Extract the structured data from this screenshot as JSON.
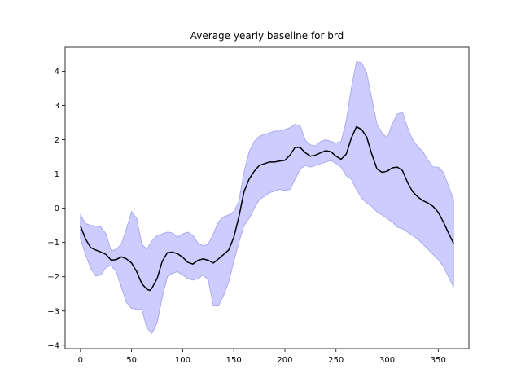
{
  "chart_data": {
    "type": "line",
    "title": "Average yearly baseline for brd",
    "xlabel": "",
    "ylabel": "",
    "xlim": [
      -15,
      380
    ],
    "ylim": [
      -4.1,
      4.7
    ],
    "xticks": [
      0,
      50,
      100,
      150,
      200,
      250,
      300,
      350
    ],
    "yticks": [
      -4,
      -3,
      -2,
      -1,
      0,
      1,
      2,
      3,
      4
    ],
    "grid": false,
    "legend": "none",
    "colors": {
      "line": "#000000",
      "band_fill": "#ccccff",
      "band_edge": "#aaaaf0"
    },
    "series": [
      {
        "role": "mean",
        "x": [
          0,
          5,
          10,
          15,
          20,
          25,
          30,
          35,
          40,
          45,
          50,
          55,
          60,
          65,
          68,
          70,
          75,
          80,
          85,
          90,
          95,
          100,
          105,
          110,
          115,
          120,
          125,
          130,
          135,
          140,
          145,
          150,
          155,
          160,
          165,
          170,
          175,
          180,
          185,
          190,
          195,
          200,
          205,
          210,
          215,
          220,
          225,
          230,
          235,
          240,
          245,
          250,
          255,
          260,
          265,
          270,
          275,
          280,
          285,
          290,
          295,
          300,
          305,
          310,
          315,
          320,
          325,
          330,
          335,
          340,
          345,
          350,
          355,
          360,
          365
        ],
        "y": [
          -0.52,
          -0.9,
          -1.15,
          -1.22,
          -1.28,
          -1.35,
          -1.52,
          -1.5,
          -1.42,
          -1.48,
          -1.6,
          -1.85,
          -2.2,
          -2.37,
          -2.4,
          -2.33,
          -2.05,
          -1.55,
          -1.3,
          -1.28,
          -1.33,
          -1.43,
          -1.58,
          -1.63,
          -1.52,
          -1.48,
          -1.52,
          -1.6,
          -1.48,
          -1.35,
          -1.22,
          -0.85,
          -0.25,
          0.48,
          0.85,
          1.08,
          1.25,
          1.3,
          1.35,
          1.35,
          1.38,
          1.4,
          1.55,
          1.78,
          1.77,
          1.62,
          1.52,
          1.55,
          1.62,
          1.68,
          1.65,
          1.52,
          1.43,
          1.58,
          2.05,
          2.38,
          2.3,
          2.08,
          1.58,
          1.15,
          1.05,
          1.08,
          1.18,
          1.2,
          1.1,
          0.75,
          0.48,
          0.33,
          0.22,
          0.15,
          0.05,
          -0.12,
          -0.4,
          -0.72,
          -1.03
        ]
      },
      {
        "role": "upper",
        "x": [
          0,
          5,
          10,
          15,
          20,
          25,
          30,
          35,
          40,
          45,
          50,
          55,
          60,
          65,
          70,
          75,
          80,
          85,
          90,
          95,
          100,
          105,
          110,
          115,
          120,
          125,
          130,
          135,
          140,
          145,
          150,
          155,
          160,
          165,
          170,
          175,
          180,
          185,
          190,
          195,
          200,
          205,
          210,
          215,
          220,
          225,
          230,
          235,
          240,
          245,
          250,
          255,
          260,
          265,
          270,
          275,
          280,
          285,
          290,
          295,
          300,
          305,
          310,
          315,
          320,
          325,
          330,
          335,
          340,
          345,
          350,
          355,
          360,
          365
        ],
        "y": [
          -0.2,
          -0.45,
          -0.5,
          -0.52,
          -0.55,
          -0.75,
          -1.25,
          -1.2,
          -1.05,
          -0.6,
          -0.1,
          -0.3,
          -1.05,
          -1.2,
          -0.95,
          -0.8,
          -0.75,
          -0.7,
          -0.72,
          -0.85,
          -0.75,
          -0.7,
          -0.8,
          -1.02,
          -1.1,
          -1.05,
          -0.75,
          -0.4,
          -0.25,
          -0.2,
          -0.1,
          0.2,
          1.05,
          1.65,
          1.95,
          2.1,
          2.15,
          2.2,
          2.25,
          2.25,
          2.3,
          2.35,
          2.45,
          2.4,
          1.98,
          1.85,
          1.82,
          1.95,
          2.0,
          1.95,
          1.9,
          1.95,
          2.55,
          3.5,
          4.28,
          4.25,
          3.95,
          3.2,
          2.45,
          2.2,
          2.05,
          2.45,
          2.75,
          2.8,
          2.35,
          2.0,
          1.8,
          1.65,
          1.4,
          1.2,
          1.2,
          1.05,
          0.65,
          0.25
        ]
      },
      {
        "role": "lower",
        "x": [
          0,
          5,
          10,
          15,
          20,
          25,
          30,
          35,
          40,
          45,
          50,
          55,
          60,
          65,
          70,
          75,
          80,
          85,
          90,
          95,
          100,
          105,
          110,
          115,
          120,
          125,
          130,
          135,
          140,
          145,
          150,
          155,
          160,
          165,
          170,
          175,
          180,
          185,
          190,
          195,
          200,
          205,
          210,
          215,
          220,
          225,
          230,
          235,
          240,
          245,
          250,
          255,
          260,
          265,
          270,
          275,
          280,
          285,
          290,
          295,
          300,
          305,
          310,
          315,
          320,
          325,
          330,
          335,
          340,
          345,
          350,
          355,
          360,
          365
        ],
        "y": [
          -0.9,
          -1.35,
          -1.75,
          -1.98,
          -1.95,
          -1.72,
          -1.68,
          -1.85,
          -2.3,
          -2.75,
          -2.92,
          -2.95,
          -2.95,
          -3.5,
          -3.65,
          -3.35,
          -2.6,
          -2.0,
          -1.9,
          -1.85,
          -1.95,
          -2.05,
          -2.1,
          -2.05,
          -1.95,
          -2.1,
          -2.85,
          -2.85,
          -2.55,
          -2.15,
          -1.55,
          -1.0,
          -0.5,
          -0.3,
          0.0,
          0.25,
          0.35,
          0.45,
          0.5,
          0.55,
          0.52,
          0.55,
          0.85,
          1.15,
          1.25,
          1.2,
          1.25,
          1.3,
          1.35,
          1.4,
          1.3,
          1.2,
          0.95,
          0.85,
          0.55,
          0.3,
          0.15,
          0.05,
          -0.1,
          -0.2,
          -0.3,
          -0.4,
          -0.55,
          -0.6,
          -0.7,
          -0.8,
          -0.9,
          -1.05,
          -1.2,
          -1.35,
          -1.5,
          -1.7,
          -2.0,
          -2.3
        ]
      }
    ]
  }
}
